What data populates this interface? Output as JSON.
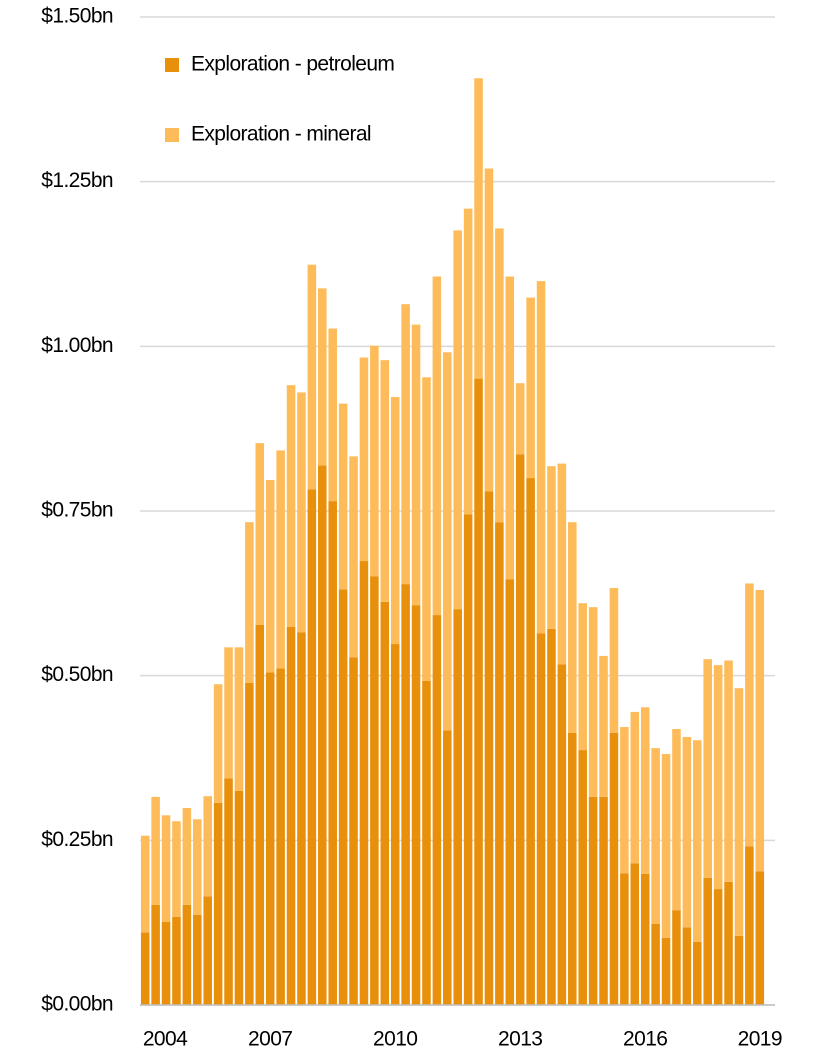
{
  "chart_data": {
    "type": "stacked-bar",
    "categories": [
      "2004",
      null,
      null,
      null,
      null,
      null,
      null,
      null,
      null,
      null,
      null,
      null,
      "2007",
      null,
      null,
      null,
      null,
      null,
      null,
      null,
      null,
      null,
      null,
      null,
      "2010",
      null,
      null,
      null,
      null,
      null,
      null,
      null,
      null,
      null,
      null,
      null,
      "2013",
      null,
      null,
      null,
      null,
      null,
      null,
      null,
      null,
      null,
      null,
      null,
      "2016",
      null,
      null,
      null,
      null,
      null,
      null,
      null,
      null,
      null,
      null,
      "2019"
    ],
    "series": [
      {
        "name": "Exploration - petroleum",
        "color": "#e8900c",
        "values": [
          0.11,
          0.152,
          0.126,
          0.134,
          0.152,
          0.137,
          0.165,
          0.307,
          0.344,
          0.325,
          0.489,
          0.577,
          0.505,
          0.511,
          0.574,
          0.566,
          0.783,
          0.819,
          0.765,
          0.631,
          0.528,
          0.674,
          0.651,
          0.612,
          0.548,
          0.639,
          0.607,
          0.492,
          0.592,
          0.417,
          0.601,
          0.745,
          0.951,
          0.78,
          0.733,
          0.646,
          0.836,
          0.8,
          0.564,
          0.571,
          0.517,
          0.413,
          0.387,
          0.316,
          0.316,
          0.413,
          0.2,
          0.215,
          0.199,
          0.123,
          0.102,
          0.144,
          0.118,
          0.096,
          0.193,
          0.176,
          0.187,
          0.105,
          0.241,
          0.203
        ]
      },
      {
        "name": "Exploration - mineral",
        "color": "#fdbb5a",
        "values": [
          0.147,
          0.164,
          0.162,
          0.145,
          0.147,
          0.145,
          0.152,
          0.18,
          0.199,
          0.218,
          0.244,
          0.276,
          0.292,
          0.331,
          0.367,
          0.364,
          0.341,
          0.269,
          0.262,
          0.282,
          0.305,
          0.309,
          0.35,
          0.367,
          0.375,
          0.425,
          0.426,
          0.461,
          0.514,
          0.574,
          0.575,
          0.464,
          0.456,
          0.49,
          0.446,
          0.46,
          0.108,
          0.274,
          0.535,
          0.247,
          0.305,
          0.32,
          0.223,
          0.288,
          0.214,
          0.22,
          0.222,
          0.23,
          0.253,
          0.267,
          0.279,
          0.275,
          0.289,
          0.306,
          0.332,
          0.34,
          0.336,
          0.376,
          0.399,
          0.427
        ]
      }
    ],
    "ylim": [
      0,
      1.5
    ],
    "yticks": [
      {
        "value": 0,
        "label": "$0.00bn"
      },
      {
        "value": 0.25,
        "label": "$0.25bn"
      },
      {
        "value": 0.5,
        "label": "$0.50bn"
      },
      {
        "value": 0.75,
        "label": "$0.75bn"
      },
      {
        "value": 1.0,
        "label": "$1.00bn"
      },
      {
        "value": 1.25,
        "label": "$1.25bn"
      },
      {
        "value": 1.5,
        "label": "$1.50bn"
      }
    ],
    "grid": true,
    "legend": "top-left"
  }
}
